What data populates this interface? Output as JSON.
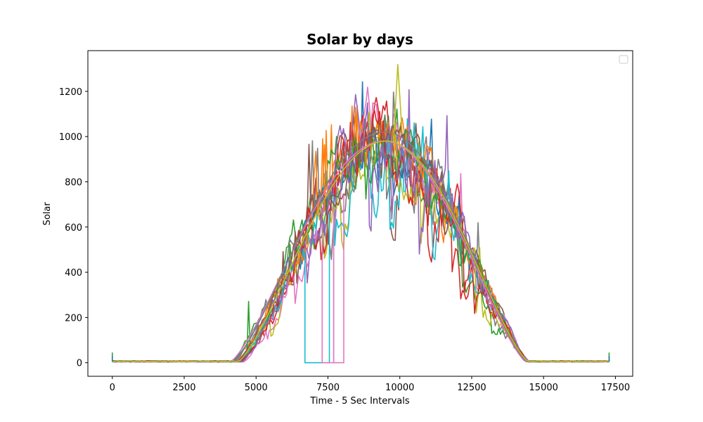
{
  "chart_data": {
    "type": "line",
    "title": "Solar by days",
    "xlabel": "Time - 5 Sec Intervals",
    "ylabel": "Solar",
    "xlim": [
      -850,
      18100
    ],
    "ylim": [
      -60,
      1380
    ],
    "xticks": [
      0,
      2500,
      5000,
      7500,
      10000,
      12500,
      15000,
      17500
    ],
    "yticks": [
      0,
      200,
      400,
      600,
      800,
      1000,
      1200
    ],
    "grid": false,
    "legend": {
      "placement": "top-right",
      "entries": []
    },
    "x_range": [
      0,
      17280
    ],
    "series_count": 19,
    "profile_peak": 1000,
    "profile_peak_x": 9500,
    "profile_start_x": 4300,
    "profile_end_x": 14500,
    "max_spike": 1320,
    "series_colors": [
      "#1f77b4",
      "#ff7f0e",
      "#2ca02c",
      "#d62728",
      "#9467bd",
      "#8c564b",
      "#e377c2",
      "#7f7f7f",
      "#bcbd22",
      "#17becf",
      "#1f77b4",
      "#ff7f0e",
      "#2ca02c",
      "#d62728",
      "#9467bd",
      "#8c564b",
      "#e377c2",
      "#7f7f7f",
      "#bcbd22"
    ],
    "dropouts": [
      {
        "color": "#17becf",
        "x": [
          6700,
          7550
        ],
        "value": 0
      },
      {
        "color": "#e377c2",
        "x": [
          7300,
          7700
        ],
        "value": 0
      },
      {
        "color": "#e377c2",
        "x": [
          7700,
          8050
        ],
        "value": 0
      }
    ]
  }
}
